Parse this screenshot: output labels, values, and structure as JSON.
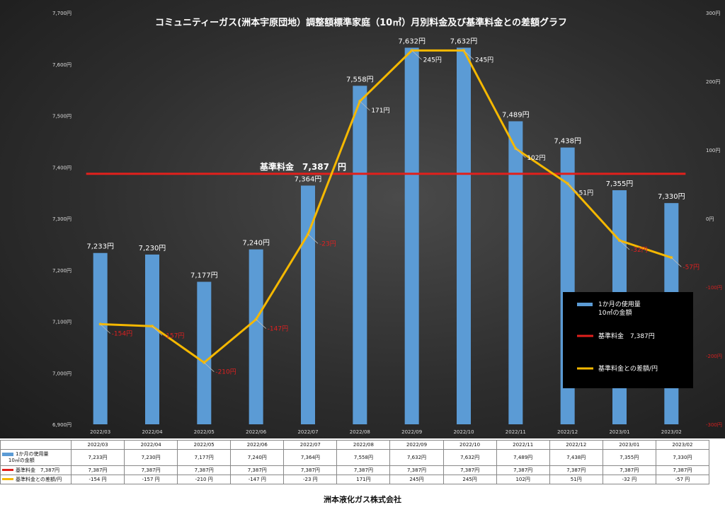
{
  "chart_data": {
    "type": "bar",
    "title": "コミュニティーガス(洲本宇原団地）調整額標準家庭（10㎥）月別料金及び基準料金との差額グラフ",
    "categories": [
      "2022/03",
      "2022/04",
      "2022/05",
      "2022/06",
      "2022/07",
      "2022/08",
      "2022/09",
      "2022/10",
      "2022/11",
      "2022/12",
      "2023/01",
      "2023/02"
    ],
    "series": [
      {
        "name": "1か月の使用量 10㎥の金額",
        "type": "bar",
        "axis": "left",
        "color": "#5b9bd5",
        "values": [
          7233,
          7230,
          7177,
          7240,
          7364,
          7558,
          7632,
          7632,
          7489,
          7438,
          7355,
          7330
        ],
        "labels": [
          "7,233円",
          "7,230円",
          "7,177円",
          "7,240円",
          "7,364円",
          "7,558円",
          "7,632円",
          "7,632円",
          "7,489円",
          "7,438円",
          "7,355円",
          "7,330円"
        ]
      },
      {
        "name": "基準料金 7,387円",
        "type": "line",
        "axis": "left",
        "color": "#e0201c",
        "values": [
          7387,
          7387,
          7387,
          7387,
          7387,
          7387,
          7387,
          7387,
          7387,
          7387,
          7387,
          7387
        ]
      },
      {
        "name": "基準料金との差額/円",
        "type": "line",
        "axis": "right",
        "color": "#f5b800",
        "values": [
          -154,
          -157,
          -210,
          -147,
          -23,
          171,
          245,
          245,
          102,
          51,
          -32,
          -57
        ],
        "labels": [
          "-154円",
          "-157円",
          "-210円",
          "-147円",
          "-23円",
          "171円",
          "245円",
          "245円",
          "102円",
          "51円",
          "-32円",
          "-57円"
        ]
      }
    ],
    "y_left": {
      "min": 6900,
      "max": 7700,
      "step": 100,
      "ticks": [
        "6,900円",
        "7,000円",
        "7,100円",
        "7,200円",
        "7,300円",
        "7,400円",
        "7,500円",
        "7,600円",
        "7,700円"
      ]
    },
    "y_right": {
      "min": -300,
      "max": 300,
      "step": 100,
      "ticks": [
        "-300円",
        "-200円",
        "-100円",
        "0円",
        "100円",
        "200円",
        "300円"
      ]
    },
    "baseline_label": "基準料金　7,387　円",
    "legend": {
      "position": "right",
      "items": [
        "1か月の使用量\n10㎥の金額",
        "基準料金　7,387円",
        "基準料金との差額/円"
      ]
    },
    "grid": false
  },
  "table": {
    "row_labels": [
      "1か月の使用量\n10㎥の金額",
      "基準料金　7,387円",
      "基準料金との差額/円"
    ],
    "rows": [
      [
        "7,233円",
        "7,230円",
        "7,177円",
        "7,240円",
        "7,364円",
        "7,558円",
        "7,632円",
        "7,632円",
        "7,489円",
        "7,438円",
        "7,355円",
        "7,330円"
      ],
      [
        "7,387円",
        "7,387円",
        "7,387円",
        "7,387円",
        "7,387円",
        "7,387円",
        "7,387円",
        "7,387円",
        "7,387円",
        "7,387円",
        "7,387円",
        "7,387円"
      ],
      [
        "-154 円",
        "-157 円",
        "-210 円",
        "-147 円",
        "-23 円",
        "171円",
        "245円",
        "245円",
        "102円",
        "51円",
        "-32 円",
        "-57 円"
      ]
    ]
  },
  "footer": "洲本液化ガス株式会社"
}
